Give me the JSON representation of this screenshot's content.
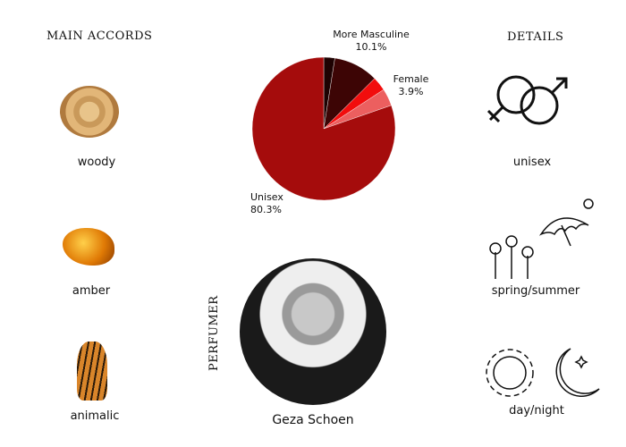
{
  "main_accords": {
    "title": "MAIN ACCORDS",
    "items": [
      {
        "label": "woody",
        "icon": "wood-slice-icon"
      },
      {
        "label": "amber",
        "icon": "amber-stone-icon"
      },
      {
        "label": "animalic",
        "icon": "tiger-icon"
      }
    ]
  },
  "details": {
    "title": "DETAILS",
    "items": [
      {
        "label": "unisex",
        "icon": "gender-symbols-icon"
      },
      {
        "label": "spring/summer",
        "icon": "flowers-umbrella-sun-icon"
      },
      {
        "label": "day/night",
        "icon": "sun-moon-icon"
      }
    ]
  },
  "perfumer": {
    "title": "PERFUMER",
    "name": "Geza Schoen"
  },
  "chart_data": {
    "type": "pie",
    "start": "top",
    "direction": "clockwise",
    "slices": [
      {
        "label": "",
        "value": 2.5,
        "color": "#1e0202"
      },
      {
        "label": "More Masculine",
        "value": 10.1,
        "display": "10.1%",
        "color": "#3d0505"
      },
      {
        "label": "",
        "value": 3.2,
        "color": "#f20d0d"
      },
      {
        "label": "Female",
        "value": 3.9,
        "display": "3.9%",
        "color": "#ec5f5f"
      },
      {
        "label": "Unisex",
        "value": 80.3,
        "display": "80.3%",
        "color": "#a50c0c"
      }
    ]
  }
}
